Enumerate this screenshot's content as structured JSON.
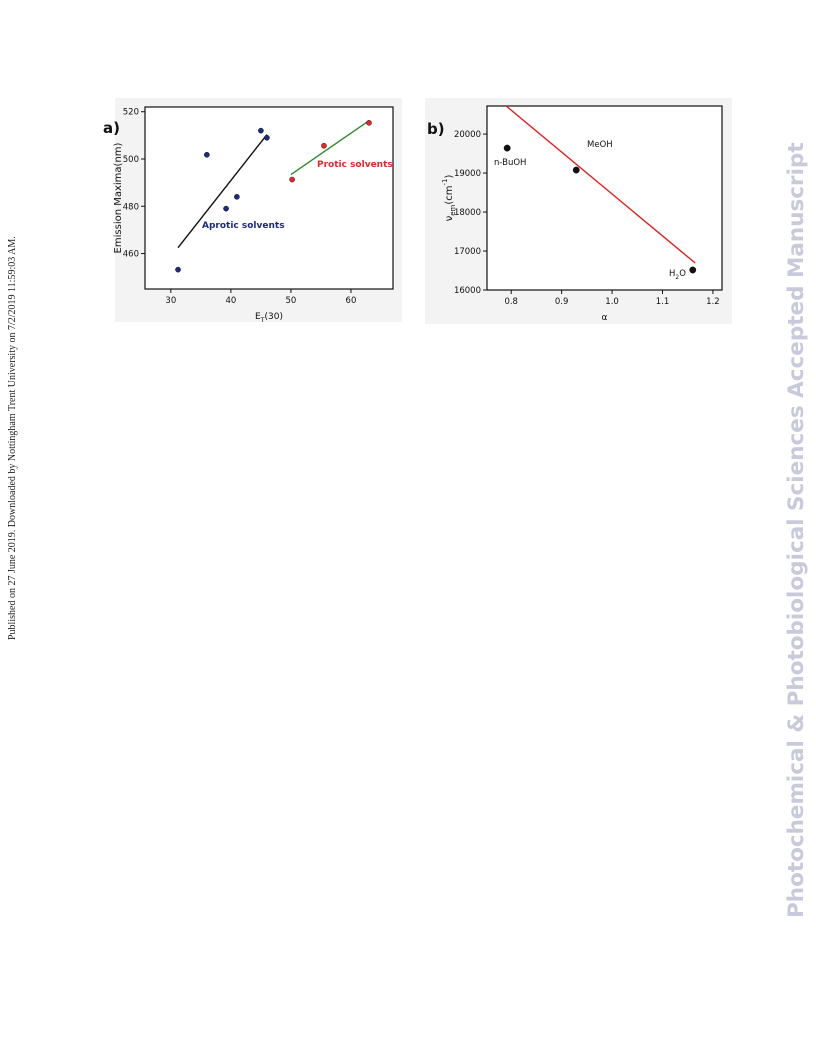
{
  "side_note": "Published on 27 June 2019. Downloaded by Nottingham Trent University on 7/2/2019 11:59:03 AM.",
  "watermark": "Photochemical & Photobiological Sciences Accepted Manuscript",
  "chart_data": [
    {
      "type": "scatter",
      "panel_label": "a)",
      "xlabel": {
        "parts": [
          "E",
          "T",
          "(30)"
        ]
      },
      "ylabel": "Emission Maxima(nm)",
      "xlim": [
        25.7,
        67
      ],
      "xticks": [
        30,
        40,
        50,
        60
      ],
      "ylim": [
        445,
        522
      ],
      "yticks": [
        460,
        480,
        500,
        520
      ],
      "series": [
        {
          "color": "#1c2a80",
          "x": [
            31.2,
            36,
            39.2,
            41,
            45,
            46
          ],
          "values": [
            453.2,
            501.8,
            479,
            484,
            512,
            509
          ]
        },
        {
          "color": "#e8262b",
          "x": [
            50.2,
            55.5,
            63
          ],
          "values": [
            491.3,
            505.6,
            515.3
          ]
        }
      ],
      "fits": [
        {
          "color": "#111111",
          "x": [
            31.2,
            46
          ],
          "values": [
            462.5,
            510.3
          ]
        },
        {
          "color": "#2e8b2e",
          "x": [
            50,
            63
          ],
          "values": [
            493.4,
            516.2
          ]
        }
      ],
      "annotations": [
        {
          "text": "Aprotic solvents",
          "color": "#1c2a80"
        },
        {
          "text": "Protic solvents",
          "color": "#e8262b"
        }
      ]
    },
    {
      "type": "scatter",
      "panel_label": "b)",
      "xlabel": "α",
      "ylabel": {
        "parts": [
          "ν",
          "em",
          "(cm",
          "-1",
          ")"
        ]
      },
      "xlim": [
        0.752,
        1.218
      ],
      "xticks": [
        0.8,
        0.9,
        {
          "value": 1,
          "label": "1.0"
        },
        1.1,
        1.2
      ],
      "ylim": [
        16000,
        20720
      ],
      "yticks": [
        16000,
        17000,
        18000,
        19000,
        20000
      ],
      "series": [
        {
          "color": "#111111",
          "x": [
            0.792,
            0.929,
            1.16
          ],
          "values": [
            19640,
            19077,
            16513
          ],
          "point_labels": [
            {
              "parts": [
                "n-BuOH"
              ]
            },
            {
              "parts": [
                "MeOH"
              ]
            },
            {
              "parts": [
                "H",
                "2",
                "O"
              ]
            }
          ]
        }
      ],
      "fits": [
        {
          "color": "#e02020",
          "x": [
            0.79,
            1.165
          ],
          "values": [
            20720,
            16690
          ]
        }
      ],
      "annotations": []
    }
  ]
}
